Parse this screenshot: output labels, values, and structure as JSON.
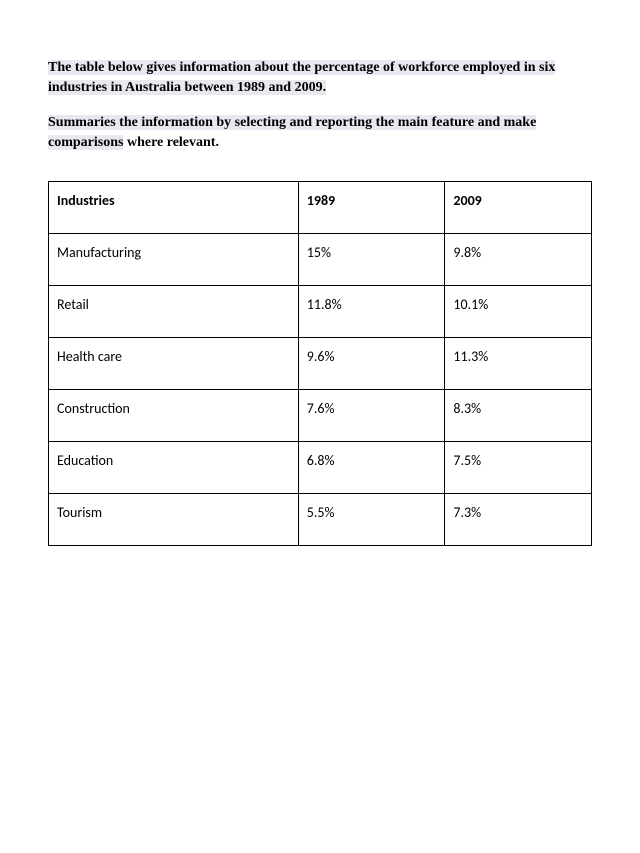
{
  "intro": {
    "paragraph1": "The table below gives information about the percentage of workforce employed in six industries in Australia between 1989 and 2009.",
    "paragraph2_highlight": "Summaries the information by selecting and reporting the main feature and make comparisons",
    "paragraph2_rest": " where relevant."
  },
  "table": {
    "type": "table",
    "columns": [
      "Industries",
      "1989",
      "2009"
    ],
    "column_widths": [
      "46%",
      "27%",
      "27%"
    ],
    "rows": [
      [
        "Manufacturing",
        "15%",
        "9.8%"
      ],
      [
        "Retail",
        "11.8%",
        "10.1%"
      ],
      [
        "Health care",
        "9.6%",
        "11.3%"
      ],
      [
        "Construction",
        "7.6%",
        "8.3%"
      ],
      [
        "Education",
        "6.8%",
        "7.5%"
      ],
      [
        "Tourism",
        "5.5%",
        "7.3%"
      ]
    ],
    "border_color": "#000000",
    "background_color": "#ffffff",
    "header_font_weight": "bold",
    "body_font_family": "Calibri",
    "body_fontsize": 14
  },
  "styling": {
    "page_background": "#ffffff",
    "intro_font_family": "Georgia",
    "intro_fontsize": 14,
    "intro_font_weight": "bold",
    "highlight_background": "#e8e8f0"
  }
}
